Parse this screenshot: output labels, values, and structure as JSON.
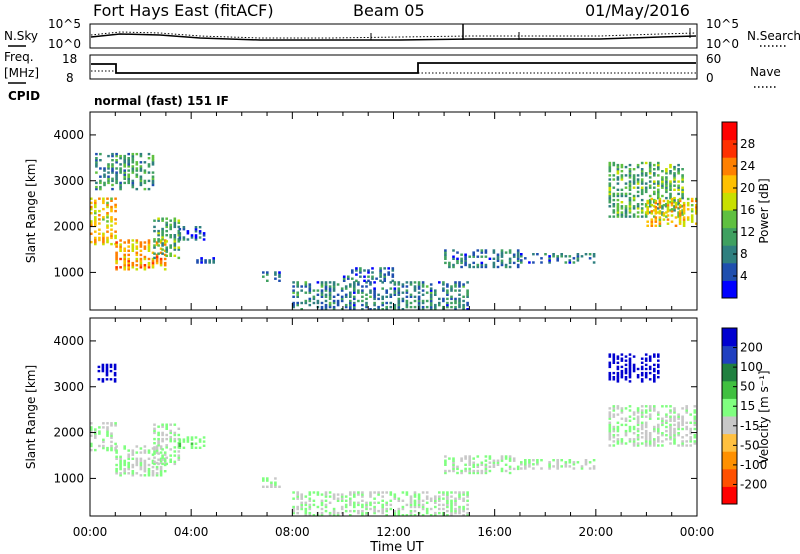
{
  "header": {
    "title": "Fort Hays East (fitACF)",
    "beam": "Beam 05",
    "date": "01/May/2016"
  },
  "noise_panel": {
    "left_label": "N.Sky",
    "right_label": "N.Search",
    "y_tick_top": "10^5",
    "y_tick_bottom": "10^0"
  },
  "freq_panel": {
    "left_label_1": "Freq.",
    "left_label_2": "[MHz]",
    "right_label": "Nave",
    "left_tick_top": "18",
    "left_tick_bottom": "8",
    "right_tick_top": "60",
    "right_tick_bottom": "0",
    "cpid_label": "CPID",
    "cpid_value": "normal (fast) 151 IF"
  },
  "colors": {
    "power": [
      "#0000ff",
      "#1f4fae",
      "#2f7f7f",
      "#3fa060",
      "#5fc040",
      "#c8e000",
      "#ffc000",
      "#ff8000",
      "#ff3000",
      "#ff0000"
    ],
    "velocity": [
      "#0000d0",
      "#2040c0",
      "#208040",
      "#40c040",
      "#80ff80",
      "#c8c8c8",
      "#ffc040",
      "#ff9000",
      "#ff5000",
      "#ff0000"
    ]
  },
  "chart_data": [
    {
      "type": "heatmap",
      "name": "power",
      "title": "",
      "xlabel": "",
      "ylabel": "Slant Range [km]",
      "xlim": [
        "00:00",
        "24:00"
      ],
      "ylim": [
        180,
        4500
      ],
      "y_ticks": [
        "1000",
        "2000",
        "3000",
        "4000"
      ],
      "colorbar": {
        "label": "Power [dB]",
        "ticks": [
          "4",
          "8",
          "12",
          "16",
          "20",
          "24",
          "28"
        ],
        "range": [
          0,
          32
        ]
      },
      "regions": [
        {
          "x0": 0.0,
          "x1": 1.0,
          "y0": 1600,
          "y1": 2600,
          "v": 20
        },
        {
          "x0": 0.2,
          "x1": 2.6,
          "y0": 2800,
          "y1": 3600,
          "v": 10
        },
        {
          "x0": 1.0,
          "x1": 3.0,
          "y0": 1050,
          "y1": 1700,
          "v": 22
        },
        {
          "x0": 2.5,
          "x1": 3.5,
          "y0": 1300,
          "y1": 2200,
          "v": 12
        },
        {
          "x0": 3.5,
          "x1": 4.5,
          "y0": 1700,
          "y1": 2000,
          "v": 6
        },
        {
          "x0": 4.2,
          "x1": 5.0,
          "y0": 1200,
          "y1": 1300,
          "v": 6
        },
        {
          "x0": 6.8,
          "x1": 7.5,
          "y0": 800,
          "y1": 1000,
          "v": 7
        },
        {
          "x0": 8.0,
          "x1": 15.0,
          "y0": 180,
          "y1": 800,
          "v": 8
        },
        {
          "x0": 10.0,
          "x1": 12.0,
          "y0": 800,
          "y1": 1100,
          "v": 6
        },
        {
          "x0": 14.0,
          "x1": 17.0,
          "y0": 1100,
          "y1": 1500,
          "v": 7
        },
        {
          "x0": 17.0,
          "x1": 20.0,
          "y0": 1200,
          "y1": 1400,
          "v": 7
        },
        {
          "x0": 20.5,
          "x1": 23.5,
          "y0": 2200,
          "y1": 3400,
          "v": 12
        },
        {
          "x0": 22.0,
          "x1": 24.0,
          "y0": 2000,
          "y1": 2600,
          "v": 20
        }
      ]
    },
    {
      "type": "heatmap",
      "name": "velocity",
      "title": "",
      "xlabel": "Time UT",
      "ylabel": "Slant Range [km]",
      "xlim": [
        "00:00",
        "24:00"
      ],
      "x_ticks": [
        "00:00",
        "04:00",
        "08:00",
        "12:00",
        "16:00",
        "20:00",
        "00:00"
      ],
      "ylim": [
        180,
        4500
      ],
      "y_ticks": [
        "1000",
        "2000",
        "3000",
        "4000"
      ],
      "colorbar": {
        "label": "Velocity [m s⁻¹]",
        "ticks": [
          "200",
          "100",
          "50",
          "15",
          "-15",
          "-50",
          "-100",
          "-200"
        ],
        "range": [
          -250,
          250
        ]
      },
      "regions": [
        {
          "x0": 0.0,
          "x1": 1.0,
          "y0": 1600,
          "y1": 2200,
          "v": 0
        },
        {
          "x0": 0.3,
          "x1": 1.0,
          "y0": 3100,
          "y1": 3500,
          "v": 220
        },
        {
          "x0": 1.0,
          "x1": 3.0,
          "y0": 1050,
          "y1": 1700,
          "v": 0
        },
        {
          "x0": 2.5,
          "x1": 3.5,
          "y0": 1300,
          "y1": 2200,
          "v": 0
        },
        {
          "x0": 3.5,
          "x1": 4.5,
          "y0": 1650,
          "y1": 1900,
          "v": 40
        },
        {
          "x0": 6.8,
          "x1": 7.5,
          "y0": 800,
          "y1": 1000,
          "v": 0
        },
        {
          "x0": 8.0,
          "x1": 15.0,
          "y0": 180,
          "y1": 700,
          "v": 0
        },
        {
          "x0": 14.0,
          "x1": 17.0,
          "y0": 1100,
          "y1": 1500,
          "v": 0
        },
        {
          "x0": 17.0,
          "x1": 20.0,
          "y0": 1200,
          "y1": 1400,
          "v": 0
        },
        {
          "x0": 20.5,
          "x1": 22.5,
          "y0": 3100,
          "y1": 3700,
          "v": 220
        },
        {
          "x0": 20.5,
          "x1": 24.0,
          "y0": 1700,
          "y1": 2600,
          "v": 0
        }
      ]
    }
  ]
}
